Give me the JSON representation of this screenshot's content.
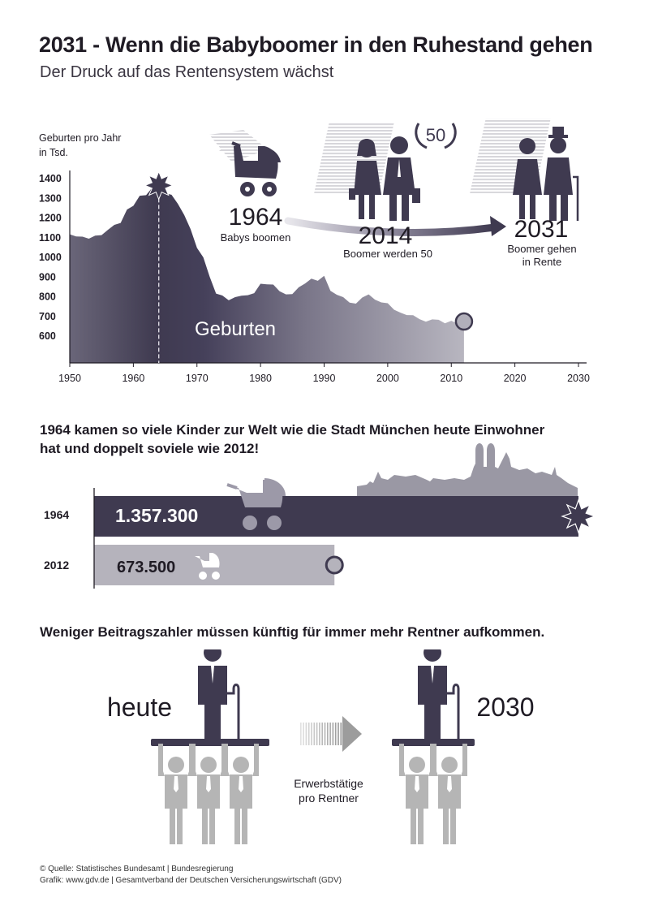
{
  "header": {
    "title": "2031 - Wenn die Babyboomer in den Ruhestand gehen",
    "subtitle": "Der Druck auf das Rentensystem wächst"
  },
  "timeline": {
    "events": [
      {
        "year": "1964",
        "caption": "Babys boomen"
      },
      {
        "year": "2014",
        "caption": "Boomer werden 50",
        "badge": "50"
      },
      {
        "year": "2031",
        "caption_line1": "Boomer gehen",
        "caption_line2": "in Rente"
      }
    ]
  },
  "chart_data": [
    {
      "type": "area",
      "ylabel_line1": "Geburten pro Jahr",
      "ylabel_line2": "in Tsd.",
      "series_label": "Geburten",
      "xlim": [
        1950,
        2030
      ],
      "ylim": [
        400,
        1450
      ],
      "x_ticks": [
        1950,
        1960,
        1970,
        1980,
        1990,
        2000,
        2010,
        2020,
        2030
      ],
      "y_ticks": [
        600,
        700,
        800,
        900,
        1000,
        1100,
        1200,
        1300,
        1400
      ],
      "highlight_year": 1964,
      "x": [
        1950,
        1951,
        1952,
        1953,
        1954,
        1955,
        1956,
        1957,
        1958,
        1959,
        1960,
        1961,
        1962,
        1963,
        1964,
        1965,
        1966,
        1967,
        1968,
        1969,
        1970,
        1971,
        1972,
        1973,
        1974,
        1975,
        1976,
        1977,
        1978,
        1979,
        1980,
        1981,
        1982,
        1983,
        1984,
        1985,
        1986,
        1987,
        1988,
        1989,
        1990,
        1991,
        1992,
        1993,
        1994,
        1995,
        1996,
        1997,
        1998,
        1999,
        2000,
        2001,
        2002,
        2003,
        2004,
        2005,
        2006,
        2007,
        2008,
        2009,
        2010,
        2011,
        2012
      ],
      "y": [
        1117,
        1106,
        1105,
        1095,
        1110,
        1113,
        1140,
        1165,
        1175,
        1243,
        1262,
        1313,
        1316,
        1355,
        1357,
        1325,
        1318,
        1272,
        1215,
        1143,
        1048,
        1000,
        902,
        816,
        806,
        782,
        798,
        805,
        808,
        818,
        866,
        863,
        862,
        828,
        812,
        813,
        848,
        867,
        892,
        881,
        906,
        830,
        810,
        798,
        770,
        765,
        796,
        812,
        785,
        771,
        767,
        734,
        719,
        707,
        706,
        686,
        673,
        685,
        683,
        665,
        678,
        663,
        674
      ]
    },
    {
      "type": "bar",
      "orientation": "horizontal",
      "categories": [
        "1964",
        "2012"
      ],
      "values": [
        1357300,
        673500
      ],
      "value_labels": [
        "1.357.300",
        "673.500"
      ]
    }
  ],
  "births": {
    "heading": "1964 kamen so viele Kinder zur Welt wie die Stadt München heute Einwohner hat und doppelt soviele wie 2012!"
  },
  "ratio": {
    "heading": "Weniger Beitragszahler müssen künftig für immer mehr Rentner aufkommen.",
    "left_label": "heute",
    "right_label": "2030",
    "middle_line1": "Erwerbstätige",
    "middle_line2": "pro Rentner",
    "workers_now": 3,
    "workers_2030": 2
  },
  "footer": {
    "line1": "© Quelle: Statistisches Bundesamt | Bundesregierung",
    "line2": "Grafik: www.gdv.de | Gesamtverband der Deutschen Versicherungswirtschaft (GDV)"
  },
  "colors": {
    "dark": "#3f3a50",
    "mid": "#8c8898",
    "light": "#b9b7c0",
    "worker": "#b5b5b5",
    "text": "#1f1b24"
  }
}
